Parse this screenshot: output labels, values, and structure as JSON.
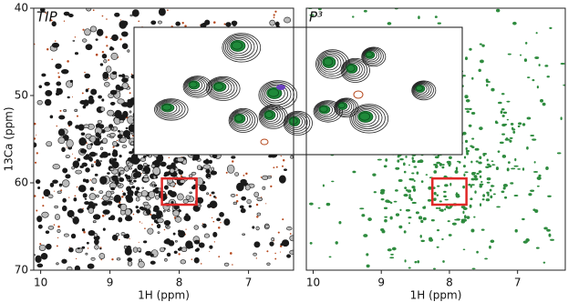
{
  "chart_data": [
    {
      "type": "contour",
      "title": "TIP",
      "xlabel": "1H (ppm)",
      "ylabel": "13Ca (ppm)",
      "xlim": [
        10.1,
        6.35
      ],
      "ylim": [
        70,
        40
      ],
      "xticks": [
        10,
        9,
        8,
        7
      ],
      "yticks": [
        40,
        50,
        60,
        70
      ],
      "colors": [
        "#1a1a1a",
        "#b5471b"
      ],
      "highlight": {
        "x": [
          8.25,
          7.75
        ],
        "y": [
          59.5,
          62.5
        ],
        "color": "#e02828"
      }
    },
    {
      "type": "contour",
      "title": "P³",
      "xlabel": "1H (ppm)",
      "xlim": [
        10.1,
        6.3
      ],
      "ylim": [
        70,
        40
      ],
      "xticks": [
        10,
        9,
        8,
        7
      ],
      "colors": [
        "#2e8b3e"
      ],
      "highlight": {
        "x": [
          8.25,
          7.75
        ],
        "y": [
          59.5,
          62.5
        ],
        "color": "#e02828"
      }
    }
  ]
}
